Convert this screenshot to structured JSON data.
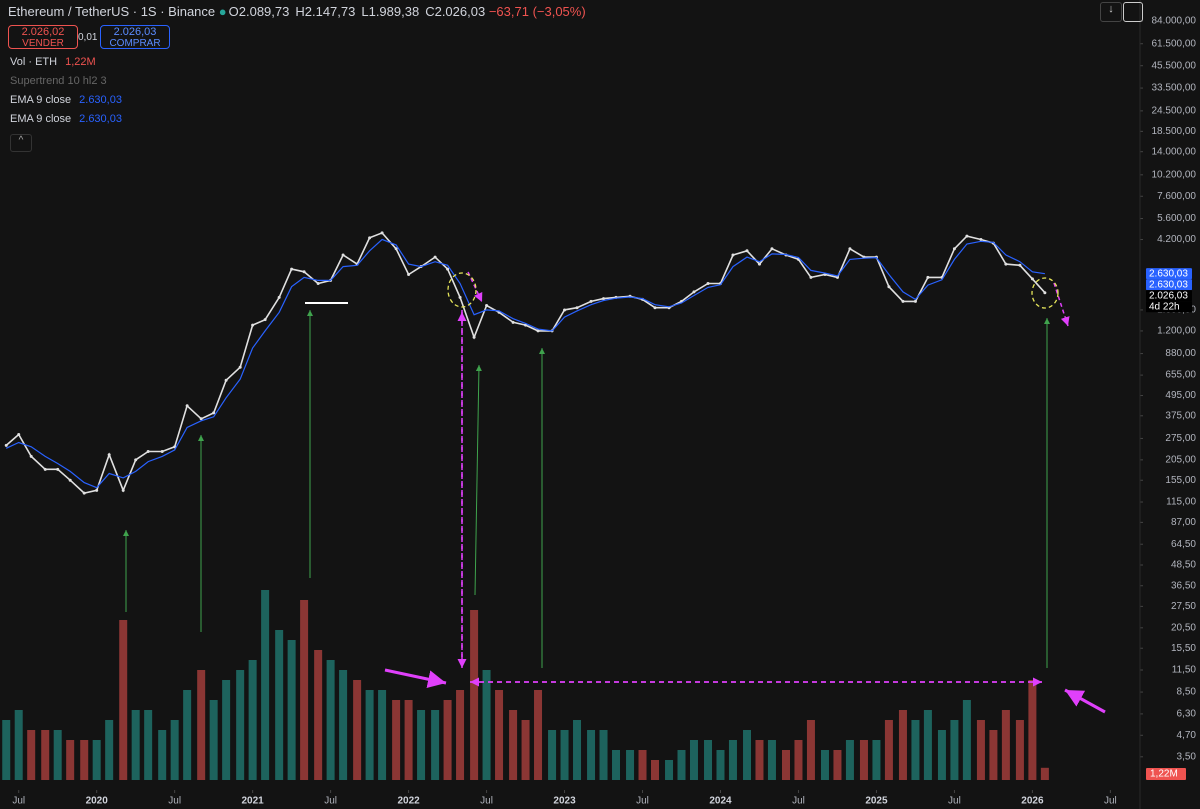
{
  "header": {
    "symbol": "Ethereum / TetherUS · 1S · Binance",
    "ohlc": [
      {
        "key": "O",
        "value": "2.089,73"
      },
      {
        "key": "H",
        "value": "2.147,73"
      },
      {
        "key": "L",
        "value": "1.989,38"
      },
      {
        "key": "C",
        "value": "2.026,03"
      }
    ],
    "change": "−63,71 (−3,05%)",
    "sell_price": "2.026,02",
    "sell_label": "VENDER",
    "spread": "0,01",
    "buy_price": "2.026,03",
    "buy_label": "COMPRAR"
  },
  "chart_data": {
    "type": "line",
    "log_scale": true,
    "indicators": [
      {
        "name": "Vol · ETH",
        "value": "1,22M"
      },
      {
        "name": "Supertrend 10 hl2 3"
      },
      {
        "name": "EMA 9 close",
        "value": "2.630,03"
      },
      {
        "name": "EMA 9 close",
        "value": "2.630,03"
      }
    ],
    "x": [
      2019.42,
      2019.5,
      2019.58,
      2019.67,
      2019.75,
      2019.83,
      2019.92,
      2020,
      2020.08,
      2020.17,
      2020.25,
      2020.33,
      2020.42,
      2020.5,
      2020.58,
      2020.67,
      2020.75,
      2020.83,
      2020.92,
      2021,
      2021.08,
      2021.17,
      2021.25,
      2021.33,
      2021.42,
      2021.5,
      2021.58,
      2021.67,
      2021.75,
      2021.83,
      2021.92,
      2022,
      2022.08,
      2022.17,
      2022.25,
      2022.33,
      2022.42,
      2022.5,
      2022.58,
      2022.67,
      2022.75,
      2022.83,
      2022.92,
      2023,
      2023.08,
      2023.17,
      2023.25,
      2023.33,
      2023.42,
      2023.5,
      2023.58,
      2023.67,
      2023.75,
      2023.83,
      2023.92,
      2024,
      2024.08,
      2024.17,
      2024.25,
      2024.33,
      2024.42,
      2024.5,
      2024.58,
      2024.67,
      2024.75,
      2024.83,
      2024.92,
      2025,
      2025.08,
      2025.17,
      2025.25,
      2025.33,
      2025.42,
      2025.5,
      2025.58,
      2025.67,
      2025.75,
      2025.83,
      2025.92,
      2026,
      2026.08
    ],
    "series": [
      {
        "color": "#e0e0e0",
        "values": [
          250,
          290,
          215,
          180,
          180,
          155,
          130,
          135,
          220,
          135,
          205,
          230,
          230,
          245,
          430,
          360,
          390,
          610,
          730,
          1300,
          1400,
          1900,
          2800,
          2700,
          2300,
          2400,
          3400,
          3000,
          4300,
          4600,
          3700,
          2600,
          2900,
          3300,
          2800,
          1900,
          1100,
          1700,
          1550,
          1350,
          1300,
          1200,
          1200,
          1600,
          1650,
          1800,
          1870,
          1900,
          1930,
          1850,
          1650,
          1650,
          1800,
          2050,
          2300,
          2300,
          3400,
          3600,
          3000,
          3700,
          3400,
          3200,
          2500,
          2600,
          2500,
          3700,
          3300,
          3300,
          2200,
          1800,
          1800,
          2500,
          2500,
          3700,
          4400,
          4200,
          4000,
          3000,
          2950,
          2450,
          2026.03
        ]
      },
      {
        "name": "EMA 9 close",
        "color": "#2962ff",
        "values": [
          240,
          260,
          245,
          215,
          195,
          175,
          150,
          140,
          170,
          160,
          175,
          200,
          215,
          235,
          320,
          350,
          370,
          480,
          620,
          950,
          1200,
          1550,
          2200,
          2500,
          2400,
          2400,
          2900,
          2950,
          3600,
          4200,
          3900,
          3000,
          2900,
          3100,
          2950,
          2300,
          1500,
          1600,
          1580,
          1420,
          1330,
          1230,
          1200,
          1450,
          1580,
          1720,
          1820,
          1880,
          1910,
          1870,
          1720,
          1670,
          1760,
          1950,
          2180,
          2260,
          2900,
          3300,
          3100,
          3450,
          3420,
          3280,
          2750,
          2650,
          2550,
          3200,
          3250,
          3280,
          2600,
          2050,
          1850,
          2250,
          2420,
          3200,
          3950,
          4100,
          4040,
          3400,
          3100,
          2700,
          2630.03
        ]
      }
    ],
    "volume": {
      "up_color": "#26a69a",
      "down_color": "#ef5350",
      "vlim": [
        0,
        25
      ],
      "values": [
        6,
        7,
        5,
        5,
        5,
        4,
        4,
        4,
        6,
        16,
        7,
        7,
        5,
        6,
        9,
        11,
        8,
        10,
        11,
        12,
        19,
        15,
        14,
        18,
        13,
        12,
        11,
        10,
        9,
        9,
        8,
        8,
        7,
        7,
        8,
        9,
        17,
        11,
        9,
        7,
        6,
        9,
        5,
        5,
        6,
        5,
        5,
        3,
        3,
        3,
        2,
        2,
        3,
        4,
        4,
        3,
        4,
        5,
        4,
        4,
        3,
        4,
        6,
        3,
        3,
        4,
        4,
        4,
        6,
        7,
        6,
        7,
        5,
        6,
        8,
        6,
        5,
        7,
        6,
        10,
        1.22
      ],
      "last_label": "1,22M"
    },
    "xlim": [
      2019.38,
      2026.69
    ],
    "xticks": [
      {
        "value": 2019.5,
        "label": "Jul"
      },
      2020,
      {
        "value": 2020.5,
        "label": "Jul"
      },
      2021,
      {
        "value": 2021.5,
        "label": "Jul"
      },
      2022,
      {
        "value": 2022.5,
        "label": "Jul"
      },
      2023,
      {
        "value": 2023.5,
        "label": "Jul"
      },
      2024,
      {
        "value": 2024.5,
        "label": "Jul"
      },
      2025,
      {
        "value": 2025.5,
        "label": "Jul"
      },
      2026,
      {
        "value": 2026.5,
        "label": "Jul"
      }
    ],
    "ylim": [
      2.22,
      112000
    ],
    "yticks": [
      {
        "value": 84000,
        "label": "84.000,00"
      },
      {
        "value": 61500,
        "label": "61.500,00"
      },
      {
        "value": 45500,
        "label": "45.500,00"
      },
      {
        "value": 33500,
        "label": "33.500,00"
      },
      {
        "value": 24500,
        "label": "24.500,00"
      },
      {
        "value": 18500,
        "label": "18.500,00"
      },
      {
        "value": 14000,
        "label": "14.000,00"
      },
      {
        "value": 10200,
        "label": "10.200,00"
      },
      {
        "value": 7600,
        "label": "7.600,00"
      },
      {
        "value": 5600,
        "label": "5.600,00"
      },
      {
        "value": 4200,
        "label": "4.200,00"
      },
      {
        "value": 1600,
        "label": "1.600,00"
      },
      {
        "value": 1200,
        "label": "1.200,00"
      },
      {
        "value": 880,
        "label": "880,00"
      },
      {
        "value": 655,
        "label": "655,00"
      },
      {
        "value": 495,
        "label": "495,00"
      },
      {
        "value": 375,
        "label": "375,00"
      },
      {
        "value": 275,
        "label": "275,00"
      },
      {
        "value": 205,
        "label": "205,00"
      },
      {
        "value": 155,
        "label": "155,00"
      },
      {
        "value": 115,
        "label": "115,00"
      },
      {
        "value": 87,
        "label": "87,00"
      },
      {
        "value": 64.5,
        "label": "64,50"
      },
      {
        "value": 48.5,
        "label": "48,50"
      },
      {
        "value": 36.5,
        "label": "36,50"
      },
      {
        "value": 27.5,
        "label": "27,50"
      },
      {
        "value": 20.5,
        "label": "20,50"
      },
      {
        "value": 15.5,
        "label": "15,50"
      },
      {
        "value": 11.5,
        "label": "11,50"
      },
      {
        "value": 8.5,
        "label": "8,50"
      },
      {
        "value": 6.3,
        "label": "6,30"
      },
      {
        "value": 4.7,
        "label": "4,70"
      },
      {
        "value": 3.5,
        "label": "3,50"
      }
    ],
    "price_tags": [
      {
        "value": 2630.03,
        "label": "2.630,03"
      },
      {
        "value": 2630.03,
        "label": "2.630,03"
      },
      {
        "value": 2026.03,
        "label": "2.026,03"
      }
    ],
    "countdown": "4d 22h"
  }
}
